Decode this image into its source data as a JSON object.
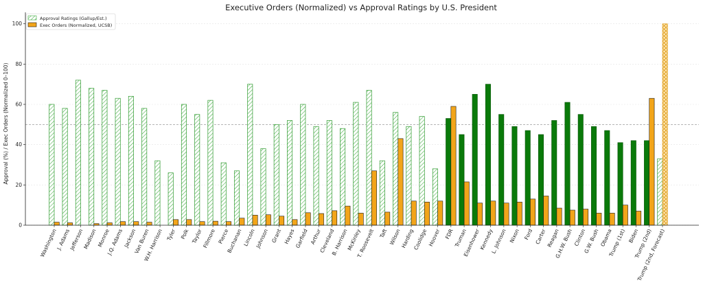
{
  "chart_data": {
    "type": "bar",
    "title": "Executive Orders (Normalized) vs Approval Ratings by U.S. President",
    "xlabel": "",
    "ylabel": "Approval (%) / Exec Orders (Normalized 0–100)",
    "ylim": [
      0,
      105
    ],
    "yticks": [
      0,
      20,
      40,
      60,
      80,
      100
    ],
    "reference_line": 50,
    "grid": "horizontal dotted",
    "legend_position": "top-left",
    "categories": [
      "Washington",
      "J. Adams",
      "Jefferson",
      "Madison",
      "Monroe",
      "J.Q. Adams",
      "Jackson",
      "Van Buren",
      "W.H. Harrison",
      "Tyler",
      "Polk",
      "Taylor",
      "Fillmore",
      "Pierce",
      "Buchanan",
      "Lincoln",
      "Johnson",
      "Grant",
      "Hayes",
      "Garfield",
      "Arthur",
      "Cleveland",
      "B. Harrison",
      "McKinley",
      "T. Roosevelt",
      "Taft",
      "Wilson",
      "Harding",
      "Coolidge",
      "Hoover",
      "FDR",
      "Truman",
      "Eisenhower",
      "Kennedy",
      "L. Johnson",
      "Nixon",
      "Ford",
      "Carter",
      "Reagan",
      "G.H.W. Bush",
      "Clinton",
      "G.W. Bush",
      "Obama",
      "Trump (1st)",
      "Biden",
      "Trump (2nd)",
      "Trump (2nd, Forecast)"
    ],
    "series": [
      {
        "name": "Approval Ratings (Gallup/Est.)",
        "values": [
          60,
          58,
          72,
          68,
          67,
          63,
          64,
          58,
          32,
          26,
          60,
          55,
          62,
          31,
          27,
          70,
          38,
          50,
          52,
          60,
          49,
          52,
          48,
          61,
          67,
          32,
          56,
          49,
          54,
          28,
          53,
          45,
          65,
          70,
          55,
          49,
          47,
          45,
          52,
          61,
          55,
          49,
          47,
          41,
          42,
          42,
          33
        ]
      },
      {
        "name": "Exec Orders (Normalized, UCSB)",
        "values": [
          1.5,
          1.2,
          0,
          0.8,
          1.2,
          1.8,
          1.8,
          1.5,
          0,
          2.8,
          2.8,
          1.8,
          2.0,
          1.8,
          3.5,
          5.0,
          5.2,
          4.5,
          2.8,
          6.2,
          5.8,
          7.2,
          9.5,
          6.0,
          27.0,
          6.5,
          43.0,
          12.0,
          11.5,
          12.0,
          59.0,
          21.5,
          11.0,
          12.0,
          11.0,
          11.5,
          13.0,
          14.5,
          8.5,
          7.5,
          8.0,
          6.0,
          6.0,
          10.0,
          7.0,
          63.0,
          100
        ]
      }
    ],
    "series_colors": {
      "approval_pre_modern": "#2e9a2e",
      "approval_modern": "#0a7a0a",
      "exec_orders": "#f2a51a",
      "exec_edge": "#1a1a1a"
    },
    "modern_start_category": "FDR",
    "forecast_category": "Trump (2nd, Forecast)"
  }
}
